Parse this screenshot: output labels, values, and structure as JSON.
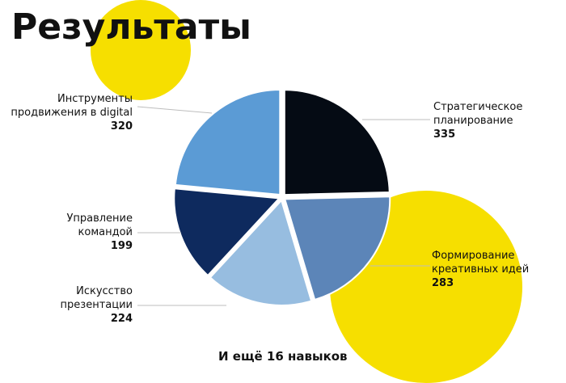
{
  "title": "Результаты",
  "footer": "И ещё 16 навыков",
  "colors": {
    "yellow": "#f6df00",
    "background": "#ffffff",
    "separator": "#ffffff",
    "leader": "#bdbdbd"
  },
  "chart_data": {
    "type": "pie",
    "slices": [
      {
        "label": "Инструменты продвижения в digital",
        "label_lines": [
          "Инструменты",
          "продвижения в digital"
        ],
        "value": 320,
        "color": "#5b9bd5"
      },
      {
        "label": "Стратегическое планирование",
        "label_lines": [
          "Стратегическое",
          "планирование"
        ],
        "value": 335,
        "color": "#050b14"
      },
      {
        "label": "Формирование креативных идей",
        "label_lines": [
          "Формирование",
          "креативных идей"
        ],
        "value": 283,
        "color": "#5c85b8"
      },
      {
        "label": "Искусство презентации",
        "label_lines": [
          "Искусство",
          "презентации"
        ],
        "value": 224,
        "color": "#97bde0"
      },
      {
        "label": "Управление командой",
        "label_lines": [
          "Управление",
          "командой"
        ],
        "value": 199,
        "color": "#0e2a5e"
      }
    ]
  }
}
